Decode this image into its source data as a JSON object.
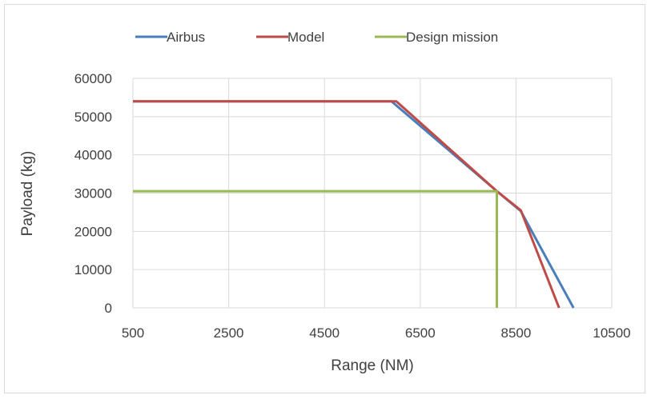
{
  "chart_data": {
    "type": "line",
    "title": "",
    "xlabel": "Range (NM)",
    "ylabel": "Payload (kg)",
    "xlim": [
      500,
      10500
    ],
    "ylim": [
      0,
      60000
    ],
    "x_ticks": [
      "500",
      "2500",
      "4500",
      "6500",
      "8500",
      "10500"
    ],
    "y_ticks": [
      "0",
      "10000",
      "20000",
      "30000",
      "40000",
      "50000",
      "60000"
    ],
    "grid": true,
    "legend_position": "top",
    "series": [
      {
        "name": "Airbus",
        "color": "#4a7ebb",
        "points": [
          [
            500,
            54000
          ],
          [
            5900,
            54000
          ],
          [
            8100,
            30500
          ],
          [
            8600,
            25300
          ],
          [
            9700,
            0
          ]
        ]
      },
      {
        "name": "Model",
        "color": "#be4b48",
        "points": [
          [
            500,
            54000
          ],
          [
            6000,
            54000
          ],
          [
            8100,
            30500
          ],
          [
            8600,
            25500
          ],
          [
            9400,
            0
          ]
        ]
      },
      {
        "name": "Design mission",
        "color": "#98b954",
        "points": [
          [
            500,
            30500
          ],
          [
            8100,
            30500
          ],
          [
            8100,
            0
          ]
        ]
      }
    ]
  }
}
